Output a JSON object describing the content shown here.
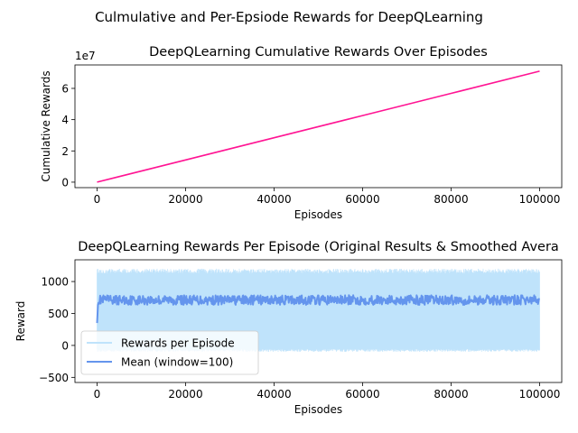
{
  "suptitle": "Culmulative and Per-Epsiode Rewards for DeepQLearning",
  "chart_data": [
    {
      "type": "line",
      "title": "DeepQLearning Cumulative Rewards Over Episodes",
      "xlabel": "Episodes",
      "ylabel": "Cumulative Rewards",
      "y_offset_text": "1e7",
      "xlim": [
        -5000,
        105000
      ],
      "ylim": [
        -3500000,
        75000000
      ],
      "xticks": [
        0,
        20000,
        40000,
        60000,
        80000,
        100000
      ],
      "xtick_labels": [
        "0",
        "20000",
        "40000",
        "60000",
        "80000",
        "100000"
      ],
      "yticks": [
        0,
        20000000,
        40000000,
        60000000
      ],
      "ytick_labels": [
        "0",
        "2",
        "4",
        "6"
      ],
      "grid": false,
      "series": [
        {
          "color": "#ff1493",
          "x": [
            0,
            20000,
            40000,
            60000,
            80000,
            100000
          ],
          "y": [
            0,
            14200000,
            28400000,
            42600000,
            56800000,
            71000000
          ]
        }
      ]
    },
    {
      "type": "line",
      "title": "DeepQLearning Rewards Per Episode (Original Results & Smoothed Avera",
      "xlabel": "Episodes",
      "ylabel": "Reward",
      "xlim": [
        -5000,
        105000
      ],
      "ylim": [
        -580,
        1340
      ],
      "xticks": [
        0,
        20000,
        40000,
        60000,
        80000,
        100000
      ],
      "xtick_labels": [
        "0",
        "20000",
        "40000",
        "60000",
        "80000",
        "100000"
      ],
      "yticks": [
        -500,
        0,
        500,
        1000
      ],
      "ytick_labels": [
        "−500",
        "0",
        "500",
        "1000"
      ],
      "grid": false,
      "legend_position": "lower-left",
      "series": [
        {
          "name": "Rewards per Episode",
          "color": "#bfe3fb",
          "x_range": [
            0,
            100000
          ],
          "y_min": -100,
          "y_max": 1200
        },
        {
          "name": "Mean (window=100)",
          "color": "#6495ed",
          "x_range": [
            0,
            100000
          ],
          "y_start": 350,
          "y_mean": 710,
          "y_band": [
            640,
            790
          ]
        }
      ]
    }
  ]
}
